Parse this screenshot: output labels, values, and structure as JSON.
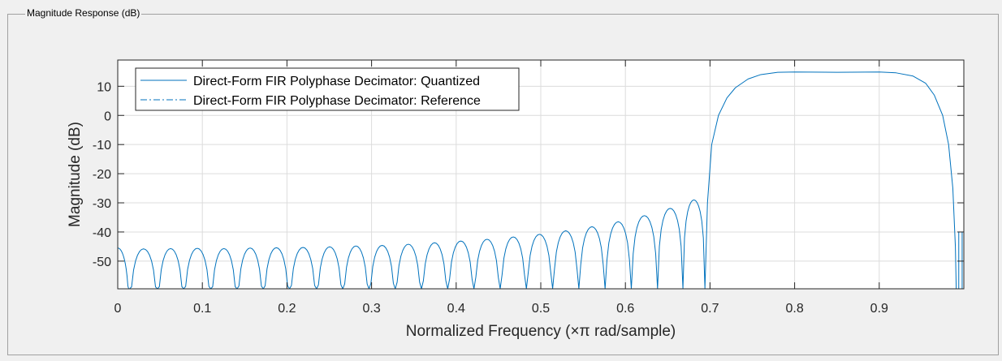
{
  "panel": {
    "title": "Magnitude Response (dB)"
  },
  "chart_data": {
    "type": "line",
    "xlabel": "Normalized Frequency (×π rad/sample)",
    "ylabel": "Magnitude (dB)",
    "xlim": [
      0,
      1
    ],
    "ylim": [
      -59.5,
      19
    ],
    "grid": true,
    "legend_position": "top-left",
    "x_ticks": [
      0,
      0.1,
      0.2,
      0.3,
      0.4,
      0.5,
      0.6,
      0.7,
      0.8,
      0.9
    ],
    "x_tick_labels": [
      "0",
      "0.1",
      "0.2",
      "0.3",
      "0.4",
      "0.5",
      "0.6",
      "0.7",
      "0.8",
      "0.9"
    ],
    "y_ticks": [
      10,
      0,
      -10,
      -20,
      -30,
      -40,
      -50
    ],
    "y_tick_labels": [
      "10",
      "0",
      "-10",
      "-20",
      "-30",
      "-40",
      "-50"
    ],
    "colors": {
      "line": "#0072bd",
      "axis": "#262626",
      "grid": "#dcdcdc"
    },
    "series": [
      {
        "name": "Direct-Form FIR Polyphase Decimator: Quantized",
        "style": "solid"
      },
      {
        "name": "Direct-Form FIR Polyphase Decimator: Reference",
        "style": "dashdot"
      }
    ],
    "stopband_nulls_x": [
      0.014,
      0.047,
      0.078,
      0.11,
      0.141,
      0.172,
      0.203,
      0.235,
      0.266,
      0.297,
      0.328,
      0.359,
      0.39,
      0.421,
      0.452,
      0.483,
      0.514,
      0.545,
      0.576,
      0.607,
      0.638,
      0.668,
      0.694
    ],
    "stopband_lobe_peaks": [
      [
        0.0,
        -45.5
      ],
      [
        0.031,
        -45.8
      ],
      [
        0.063,
        -45.7
      ],
      [
        0.094,
        -45.6
      ],
      [
        0.125,
        -45.7
      ],
      [
        0.156,
        -45.5
      ],
      [
        0.187,
        -45.4
      ],
      [
        0.219,
        -45.3
      ],
      [
        0.25,
        -45.1
      ],
      [
        0.281,
        -44.8
      ],
      [
        0.312,
        -44.6
      ],
      [
        0.343,
        -44.2
      ],
      [
        0.374,
        -43.7
      ],
      [
        0.405,
        -43.1
      ],
      [
        0.436,
        -42.5
      ],
      [
        0.467,
        -41.7
      ],
      [
        0.498,
        -40.8
      ],
      [
        0.529,
        -39.6
      ],
      [
        0.56,
        -38.2
      ],
      [
        0.591,
        -36.5
      ],
      [
        0.622,
        -34.4
      ],
      [
        0.653,
        -31.9
      ],
      [
        0.68,
        -29.0
      ]
    ],
    "transition": [
      [
        0.694,
        -59.5
      ],
      [
        0.697,
        -30.0
      ],
      [
        0.702,
        -10.0
      ],
      [
        0.71,
        0.0
      ],
      [
        0.72,
        6.0
      ],
      [
        0.73,
        9.5
      ],
      [
        0.745,
        12.5
      ],
      [
        0.76,
        14.0
      ],
      [
        0.78,
        14.8
      ],
      [
        0.8,
        14.9
      ]
    ],
    "passband": [
      [
        0.8,
        14.9
      ],
      [
        0.85,
        14.8
      ],
      [
        0.9,
        14.9
      ],
      [
        0.92,
        14.6
      ],
      [
        0.94,
        13.5
      ],
      [
        0.955,
        11.0
      ],
      [
        0.965,
        7.0
      ],
      [
        0.975,
        0.0
      ],
      [
        0.982,
        -10.0
      ],
      [
        0.987,
        -25.0
      ],
      [
        0.99,
        -45.0
      ],
      [
        0.991,
        -59.5
      ]
    ],
    "edge_features": [
      [
        0.994,
        -59.5
      ],
      [
        0.994,
        -40.0
      ],
      [
        0.998,
        -40.0
      ],
      [
        0.998,
        -59.5
      ]
    ]
  }
}
